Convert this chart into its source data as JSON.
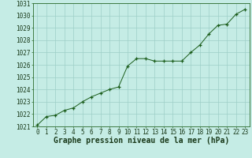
{
  "x": [
    0,
    1,
    2,
    3,
    4,
    5,
    6,
    7,
    8,
    9,
    10,
    11,
    12,
    13,
    14,
    15,
    16,
    17,
    18,
    19,
    20,
    21,
    22,
    23
  ],
  "y": [
    1021.1,
    1021.8,
    1021.9,
    1022.3,
    1022.5,
    1023.0,
    1023.4,
    1023.7,
    1024.0,
    1024.2,
    1025.9,
    1026.5,
    1026.5,
    1026.3,
    1026.3,
    1026.3,
    1026.3,
    1027.0,
    1027.6,
    1028.5,
    1029.2,
    1029.3,
    1030.1,
    1030.5
  ],
  "line_color": "#1a5c1a",
  "marker_color": "#1a5c1a",
  "background_color": "#c5ece5",
  "grid_color": "#9dcfc7",
  "xlabel": "Graphe pression niveau de la mer (hPa)",
  "xlabel_fontsize": 7,
  "ylim": [
    1021,
    1031
  ],
  "yticks": [
    1021,
    1022,
    1023,
    1024,
    1025,
    1026,
    1027,
    1028,
    1029,
    1030,
    1031
  ],
  "xlim": [
    -0.5,
    23.5
  ],
  "xticks": [
    0,
    1,
    2,
    3,
    4,
    5,
    6,
    7,
    8,
    9,
    10,
    11,
    12,
    13,
    14,
    15,
    16,
    17,
    18,
    19,
    20,
    21,
    22,
    23
  ],
  "tick_fontsize": 5.5,
  "spine_color": "#2a6a2a"
}
